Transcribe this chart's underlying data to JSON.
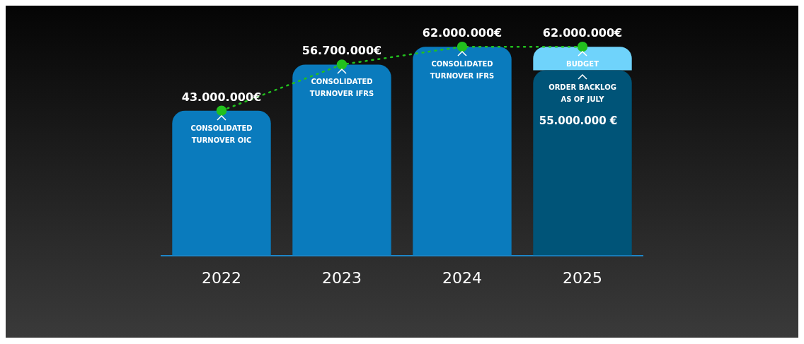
{
  "chart_data": {
    "type": "bar",
    "categories": [
      "2022",
      "2023",
      "2024",
      "2025"
    ],
    "stacked": true,
    "tick_labels": "x",
    "legend": false,
    "marker": "circle",
    "line_style": "dotted",
    "series": [
      {
        "color": "#0a7bbd",
        "values": [
          43000000,
          56700000,
          62000000,
          null
        ]
      },
      {
        "color": "#005478",
        "values": [
          null,
          null,
          null,
          55000000
        ],
        "value_labels": [
          null,
          null,
          null,
          "55.000.000 €"
        ]
      },
      {
        "color": "#6fd3fb",
        "values": [
          null,
          null,
          null,
          7000000
        ]
      },
      {
        "type": "line",
        "color": "#22c01e",
        "values": [
          43000000,
          56700000,
          62000000,
          62000000
        ],
        "value_labels": [
          "43.000.000€",
          "56.700.000€",
          "62.000.000€",
          "62.000.000€"
        ]
      }
    ],
    "annotations": [
      {
        "text": "CONSOLIDATED TURNOVER OIC",
        "x": "2022",
        "y": 43000000
      },
      {
        "text": "CONSOLIDATED TURNOVER IFRS",
        "x": "2023",
        "y": 56700000
      },
      {
        "text": "CONSOLIDATED TURNOVER IFRS",
        "x": "2024",
        "y": 62000000
      },
      {
        "text": "BUDGET",
        "x": "2025",
        "y": 62000000
      },
      {
        "text": "ORDER BACKLOG AS OF JULY",
        "x": "2025",
        "y": 55000000
      }
    ]
  }
}
